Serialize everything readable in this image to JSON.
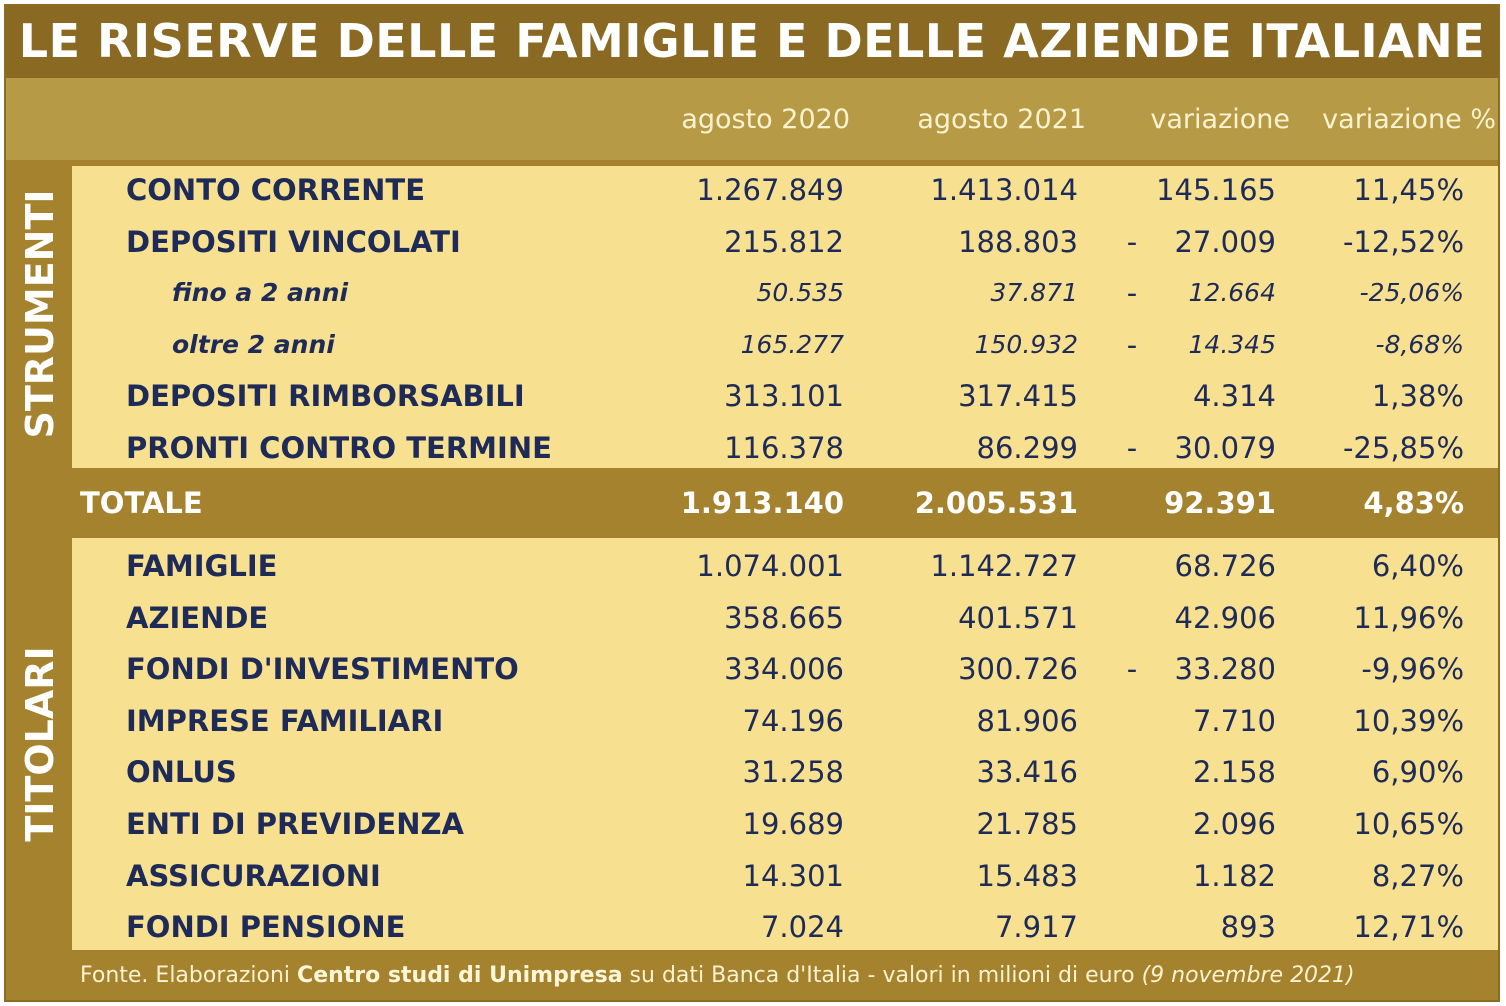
{
  "title": "LE RISERVE DELLE FAMIGLIE E DELLE AZIENDE ITALIANE",
  "columns": [
    "agosto 2020",
    "agosto 2021",
    "variazione",
    "variazione %"
  ],
  "side_labels": {
    "top": "STRUMENTI",
    "bottom": "TITOLARI"
  },
  "strumenti": [
    {
      "label": "CONTO CORRENTE",
      "v2020": "1.267.849",
      "v2021": "1.413.014",
      "sign": "",
      "var": "145.165",
      "pct": "11,45%"
    },
    {
      "label": "DEPOSITI VINCOLATI",
      "v2020": "215.812",
      "v2021": "188.803",
      "sign": "-",
      "var": "27.009",
      "pct": "-12,52%"
    },
    {
      "label": "fino a 2 anni",
      "v2020": "50.535",
      "v2021": "37.871",
      "sign": "-",
      "var": "12.664",
      "pct": "-25,06%"
    },
    {
      "label": "oltre 2 anni",
      "v2020": "165.277",
      "v2021": "150.932",
      "sign": "-",
      "var": "14.345",
      "pct": "-8,68%"
    },
    {
      "label": "DEPOSITI RIMBORSABILI",
      "v2020": "313.101",
      "v2021": "317.415",
      "sign": "",
      "var": "4.314",
      "pct": "1,38%"
    },
    {
      "label": "PRONTI CONTRO TERMINE",
      "v2020": "116.378",
      "v2021": "86.299",
      "sign": "-",
      "var": "30.079",
      "pct": "-25,85%"
    }
  ],
  "totale": {
    "label": "TOTALE",
    "v2020": "1.913.140",
    "v2021": "2.005.531",
    "var": "92.391",
    "pct": "4,83%"
  },
  "titolari": [
    {
      "label": "FAMIGLIE",
      "v2020": "1.074.001",
      "v2021": "1.142.727",
      "sign": "",
      "var": "68.726",
      "pct": "6,40%"
    },
    {
      "label": "AZIENDE",
      "v2020": "358.665",
      "v2021": "401.571",
      "sign": "",
      "var": "42.906",
      "pct": "11,96%"
    },
    {
      "label": "FONDI D'INVESTIMENTO",
      "v2020": "334.006",
      "v2021": "300.726",
      "sign": "-",
      "var": "33.280",
      "pct": "-9,96%"
    },
    {
      "label": "IMPRESE FAMILIARI",
      "v2020": "74.196",
      "v2021": "81.906",
      "sign": "",
      "var": "7.710",
      "pct": "10,39%"
    },
    {
      "label": "ONLUS",
      "v2020": "31.258",
      "v2021": "33.416",
      "sign": "",
      "var": "2.158",
      "pct": "6,90%"
    },
    {
      "label": "ENTI DI PREVIDENZA",
      "v2020": "19.689",
      "v2021": "21.785",
      "sign": "",
      "var": "2.096",
      "pct": "10,65%"
    },
    {
      "label": "ASSICURAZIONI",
      "v2020": "14.301",
      "v2021": "15.483",
      "sign": "",
      "var": "1.182",
      "pct": "8,27%"
    },
    {
      "label": "FONDI PENSIONE",
      "v2020": "7.024",
      "v2021": "7.917",
      "sign": "",
      "var": "893",
      "pct": "12,71%"
    }
  ],
  "footer": {
    "prefix": "Fonte. Elaborazioni ",
    "source": "Centro studi di Unimpresa",
    "middle": " su dati Banca d'Italia - valori in milioni di euro ",
    "date": "(9 novembre 2021)"
  },
  "colors": {
    "frame": "#a5822e",
    "panel": "#f7e08f",
    "text": "#1e2a57"
  }
}
